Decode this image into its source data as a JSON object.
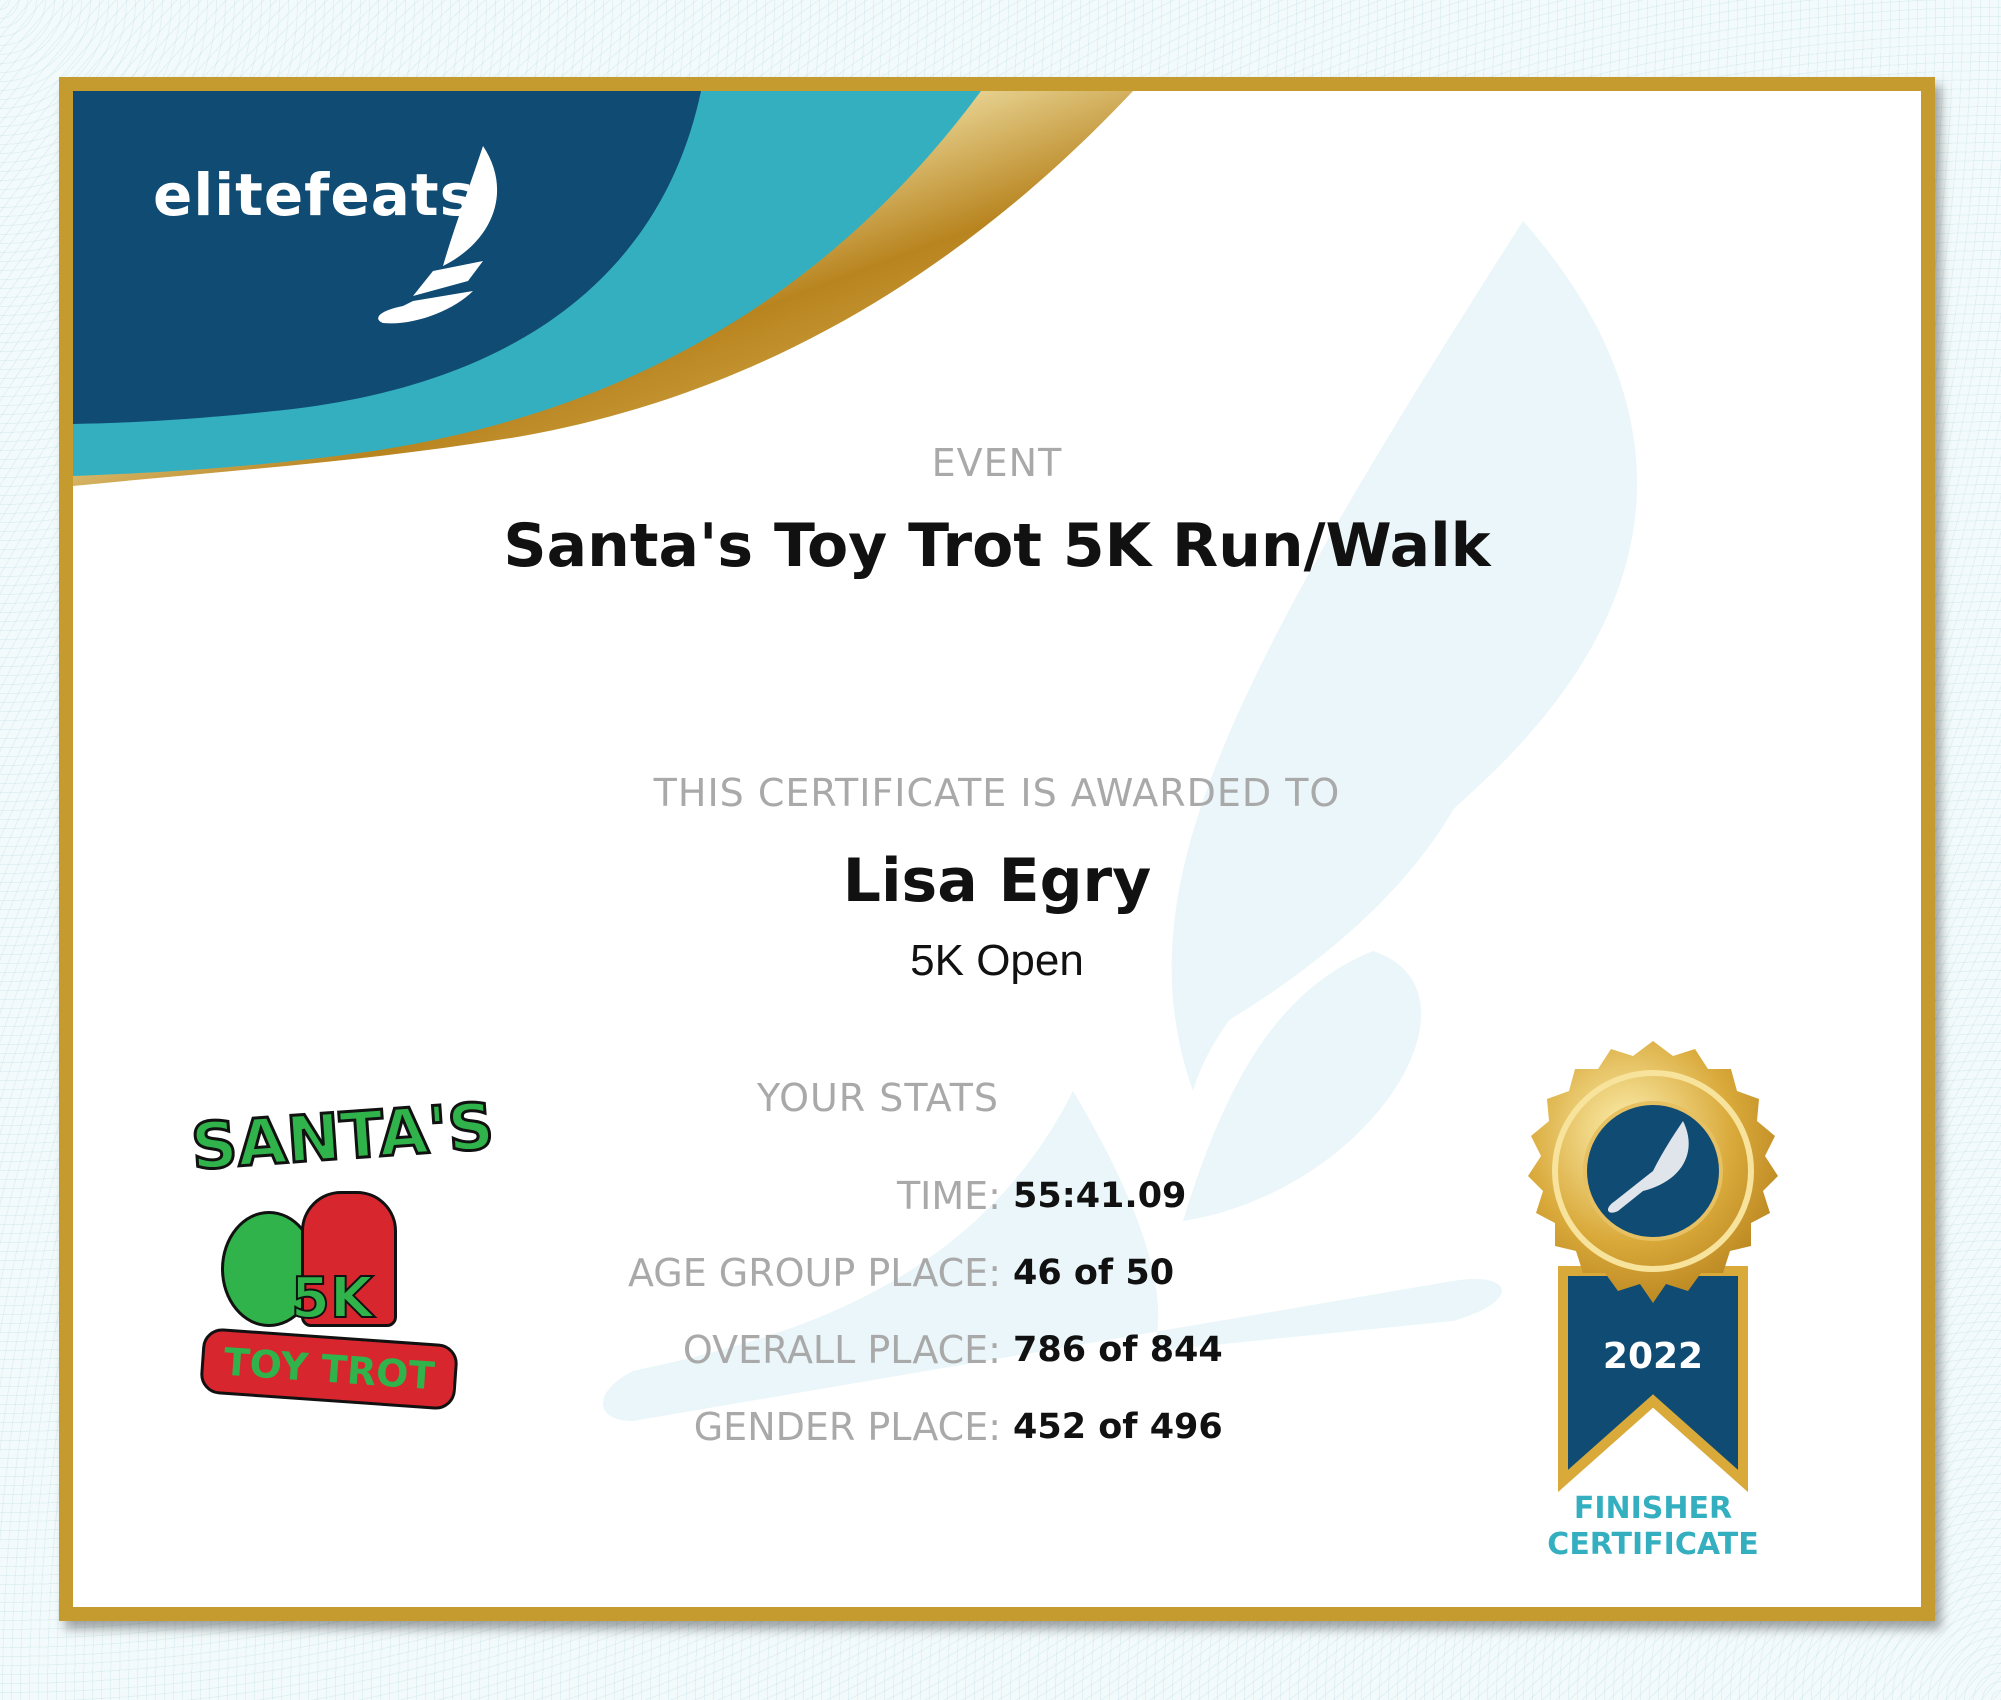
{
  "brand": {
    "logo_text": "elitefeats",
    "colors": {
      "navy": "#0f4b73",
      "teal": "#33afc0",
      "gold": "#c59a2e"
    }
  },
  "event": {
    "label": "EVENT",
    "name": "Santa's Toy Trot 5K Run/Walk"
  },
  "award": {
    "label": "THIS CERTIFICATE IS AWARDED TO",
    "name": "Lisa Egry",
    "division": "5K Open"
  },
  "stats": {
    "label": "YOUR STATS",
    "rows": [
      {
        "label": "TIME:",
        "value": "55:41.09"
      },
      {
        "label": "AGE GROUP PLACE:",
        "value": "46 of 50"
      },
      {
        "label": "OVERALL PLACE:",
        "value": "786 of 844"
      },
      {
        "label": "GENDER PLACE:",
        "value": "452 of 496"
      }
    ]
  },
  "event_logo": {
    "text_top": "SANTA'S",
    "text_mid": "5K",
    "text_bottom": "TOY TROT"
  },
  "medal": {
    "year": "2022",
    "line1": "FINISHER",
    "line2": "CERTIFICATE"
  }
}
